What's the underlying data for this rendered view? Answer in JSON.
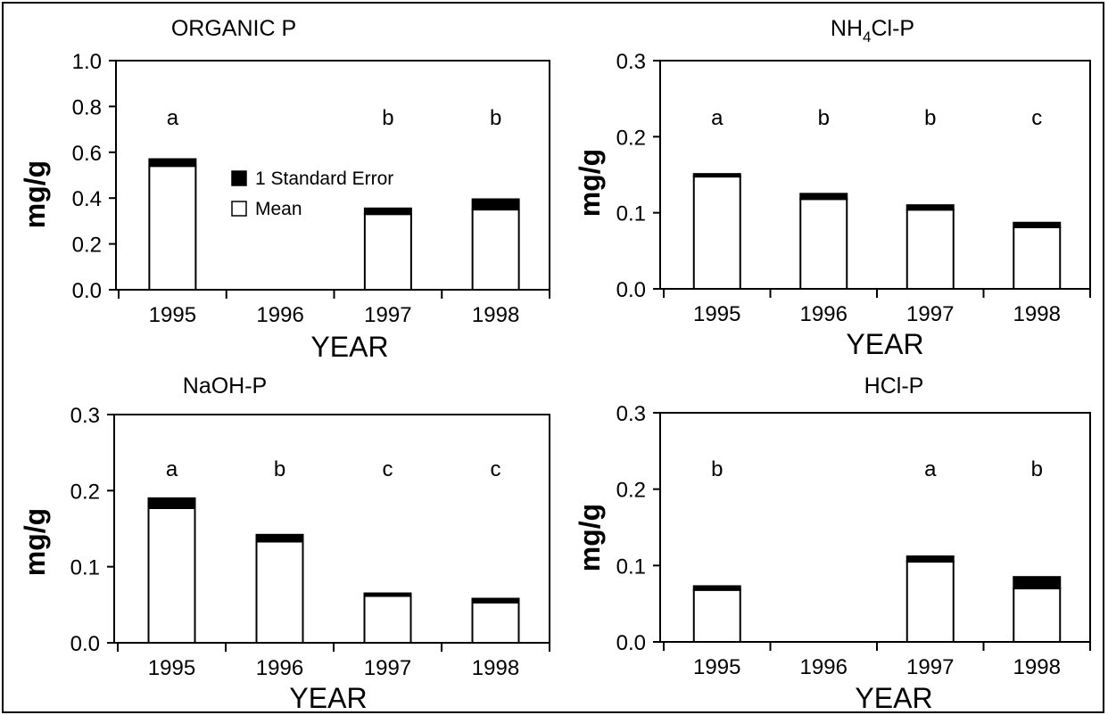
{
  "colors": {
    "bar_fill": "#ffffff",
    "error_fill": "#000000",
    "axis": "#000000"
  },
  "chart_data": [
    {
      "type": "bar",
      "title": "ORGANIC P",
      "ylabel": "mg/g",
      "xlabel": "YEAR",
      "ylim": [
        0,
        1.0
      ],
      "yticks": [
        "0.0",
        "0.2",
        "0.4",
        "0.6",
        "0.8",
        "1.0"
      ],
      "ytick_values": [
        0,
        0.2,
        0.4,
        0.6,
        0.8,
        1.0
      ],
      "categories": [
        "1995",
        "1996",
        "1997",
        "1998"
      ],
      "series": [
        {
          "name": "Mean",
          "values": [
            0.54,
            null,
            0.33,
            0.35
          ]
        },
        {
          "name": "1 Standard Error",
          "values": [
            0.03,
            null,
            0.025,
            0.045
          ]
        }
      ],
      "annotations": [
        "a",
        "",
        "b",
        "b"
      ],
      "legend": {
        "placement": "center",
        "entries": [
          "1 Standard Error",
          "Mean"
        ]
      }
    },
    {
      "type": "bar",
      "title_main": "NH",
      "title_sub": "4",
      "title_rest": "Cl-P",
      "ylabel": "mg/g",
      "xlabel": "YEAR",
      "ylim": [
        0,
        0.3
      ],
      "yticks": [
        "0.0",
        "0.1",
        "0.2",
        "0.3"
      ],
      "ytick_values": [
        0,
        0.1,
        0.2,
        0.3
      ],
      "categories": [
        "1995",
        "1996",
        "1997",
        "1998"
      ],
      "series": [
        {
          "name": "Mean",
          "values": [
            0.148,
            0.118,
            0.104,
            0.081
          ]
        },
        {
          "name": "1 Standard Error",
          "values": [
            0.003,
            0.007,
            0.006,
            0.006
          ]
        }
      ],
      "annotations": [
        "a",
        "b",
        "b",
        "c"
      ]
    },
    {
      "type": "bar",
      "title": "NaOH-P",
      "ylabel": "mg/g",
      "xlabel": "YEAR",
      "ylim": [
        0,
        0.3
      ],
      "yticks": [
        "0.0",
        "0.1",
        "0.2",
        "0.3"
      ],
      "ytick_values": [
        0,
        0.1,
        0.2,
        0.3
      ],
      "categories": [
        "1995",
        "1996",
        "1997",
        "1998"
      ],
      "series": [
        {
          "name": "Mean",
          "values": [
            0.177,
            0.133,
            0.063,
            0.053
          ]
        },
        {
          "name": "1 Standard Error",
          "values": [
            0.013,
            0.009,
            0.002,
            0.005
          ]
        }
      ],
      "annotations": [
        "a",
        "b",
        "c",
        "c"
      ]
    },
    {
      "type": "bar",
      "title": "HCl-P",
      "ylabel": "mg/g",
      "xlabel": "YEAR",
      "ylim": [
        0,
        0.3
      ],
      "yticks": [
        "0.0",
        "0.1",
        "0.2",
        "0.3"
      ],
      "ytick_values": [
        0,
        0.1,
        0.2,
        0.3
      ],
      "categories": [
        "1995",
        "1996",
        "1997",
        "1998"
      ],
      "series": [
        {
          "name": "Mean",
          "values": [
            0.068,
            null,
            0.105,
            0.07
          ]
        },
        {
          "name": "1 Standard Error",
          "values": [
            0.005,
            null,
            0.007,
            0.015
          ]
        }
      ],
      "annotations": [
        "b",
        "",
        "a",
        "b"
      ]
    }
  ]
}
